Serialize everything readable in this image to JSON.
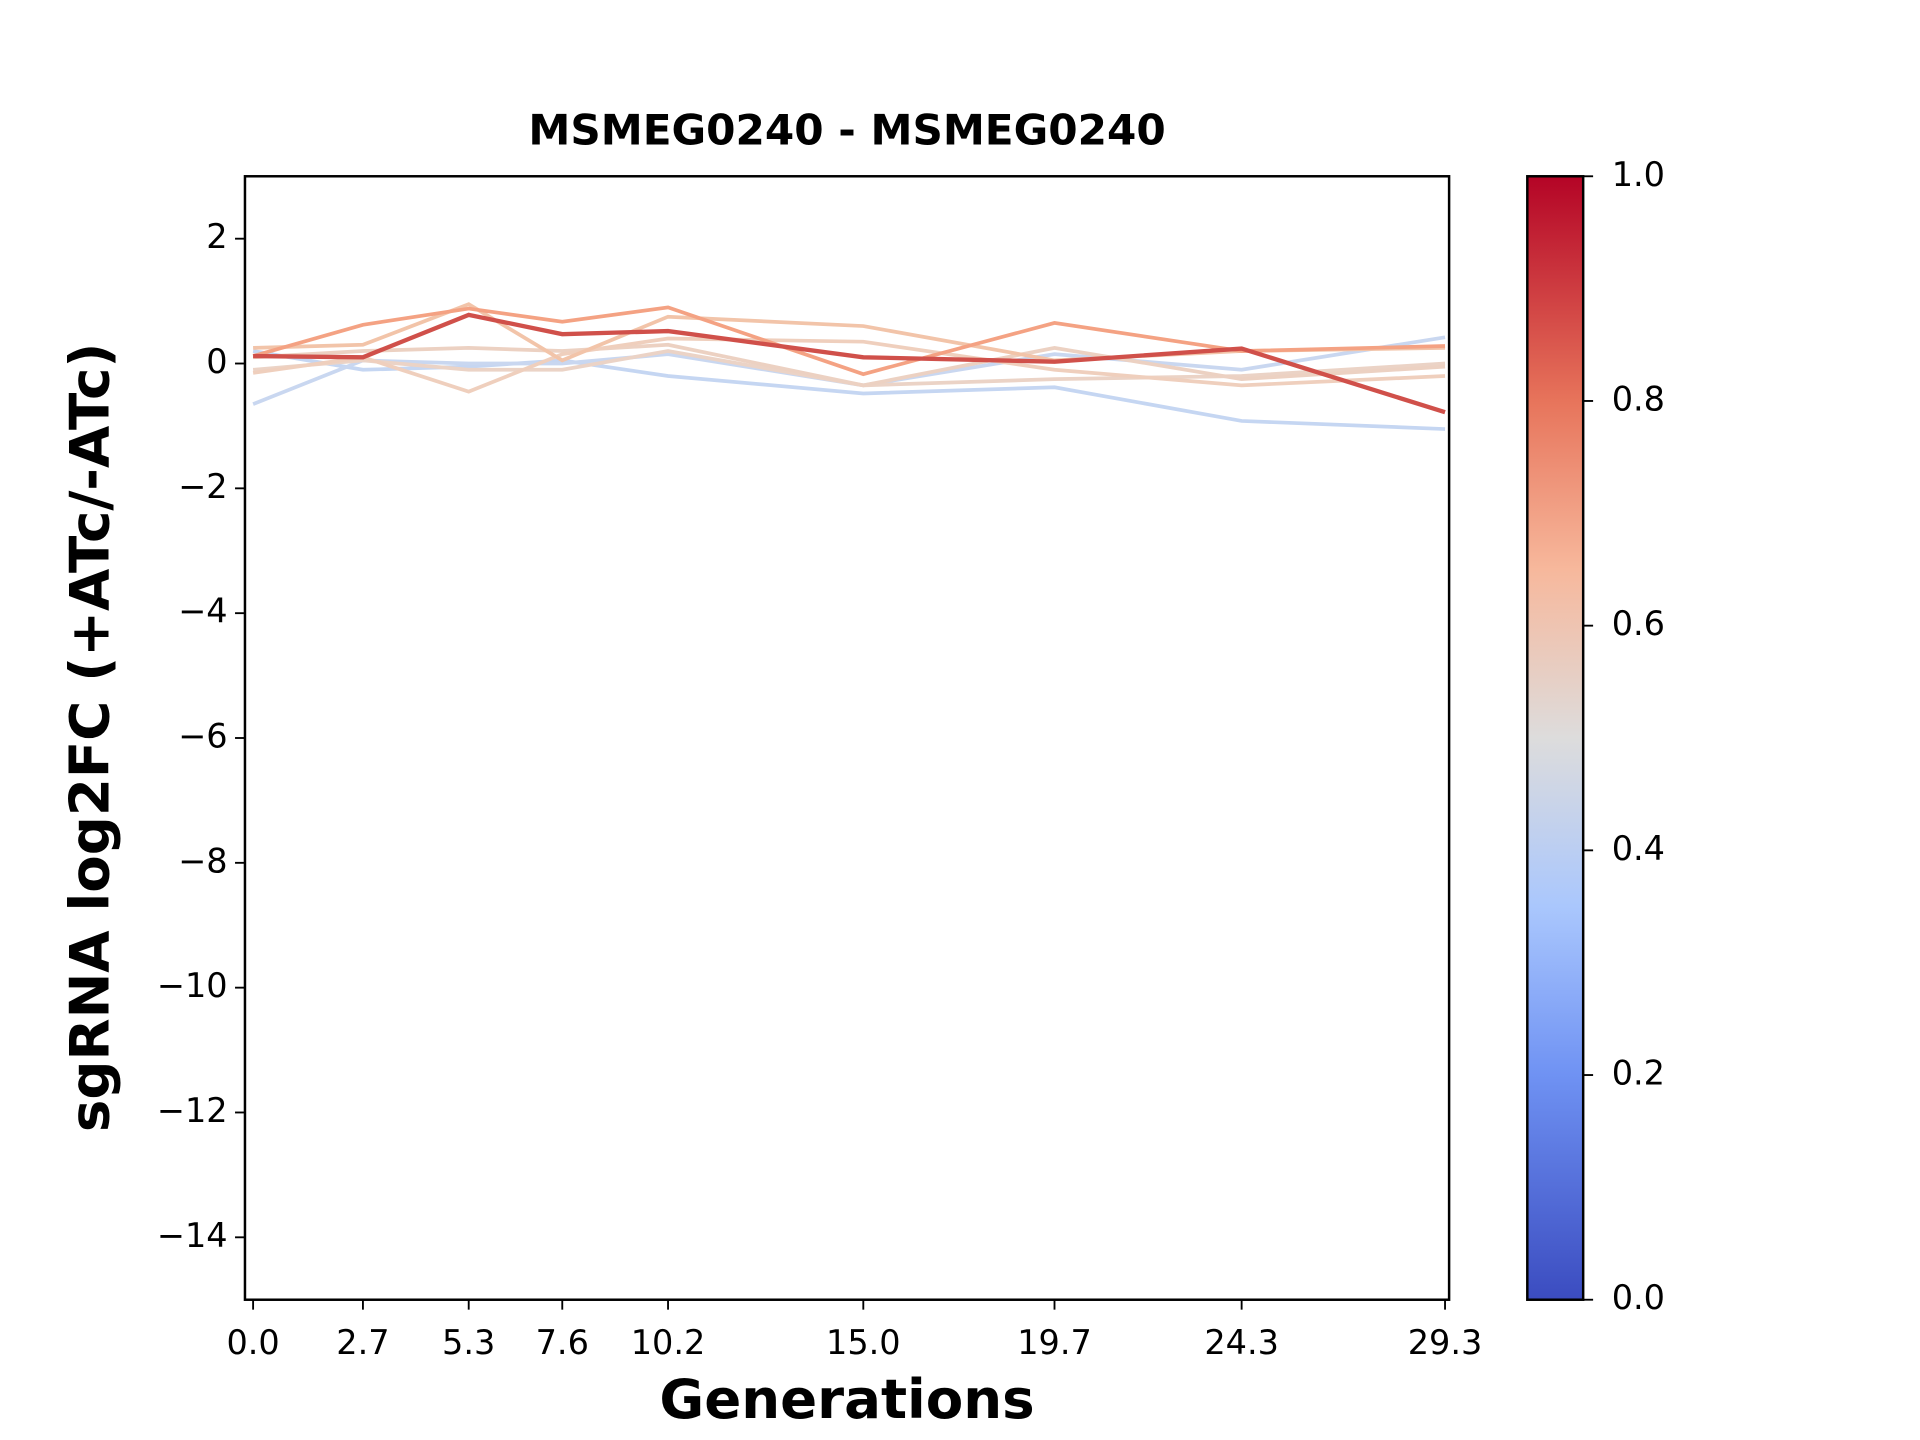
{
  "chart_data": {
    "type": "line",
    "title": "MSMEG0240 - MSMEG0240",
    "xlabel": "Generations",
    "ylabel": "sgRNA log2FC (+ATc/-ATc)",
    "x": [
      0.0,
      2.7,
      5.3,
      7.6,
      10.2,
      15.0,
      19.7,
      24.3,
      29.3
    ],
    "xlim": [
      -0.2,
      29.4
    ],
    "xticks": [
      {
        "value": 0,
        "label": "0.0"
      },
      2.7,
      5.3,
      7.6,
      10.2,
      {
        "value": 15,
        "label": "15.0"
      },
      19.7,
      24.3,
      29.3
    ],
    "ylim": [
      -15,
      3
    ],
    "yticks": [
      2,
      0,
      {
        "value": -2,
        "label": "−2"
      },
      {
        "value": -4,
        "label": "−4"
      },
      {
        "value": -6,
        "label": "−6"
      },
      {
        "value": -8,
        "label": "−8"
      },
      {
        "value": -10,
        "label": "−10"
      },
      {
        "value": -12,
        "label": "−12"
      },
      {
        "value": -14,
        "label": "−14"
      }
    ],
    "series": [
      {
        "color": "#c5d6f2",
        "values": [
          0.2,
          -0.1,
          -0.05,
          0.05,
          -0.2,
          -0.48,
          -0.38,
          -0.92,
          -1.05
        ]
      },
      {
        "color": "#c9d7f0",
        "values": [
          -0.65,
          0.05,
          0.0,
          0.0,
          0.15,
          -0.35,
          0.15,
          -0.1,
          0.42
        ]
      },
      {
        "color": "#ebd3c6",
        "values": [
          -0.1,
          0.05,
          -0.1,
          -0.1,
          0.2,
          -0.35,
          -0.25,
          -0.2,
          0.0
        ]
      },
      {
        "color": "#ecd1c2",
        "values": [
          0.1,
          0.2,
          0.25,
          0.2,
          0.3,
          -0.35,
          0.25,
          -0.25,
          -0.05
        ]
      },
      {
        "color": "#efcfbd",
        "values": [
          -0.15,
          0.1,
          -0.45,
          0.15,
          0.4,
          0.35,
          -0.1,
          -0.35,
          -0.2
        ]
      },
      {
        "color": "#f2c4a9",
        "values": [
          0.25,
          0.3,
          0.95,
          0.05,
          0.75,
          0.6,
          0.05,
          0.2,
          0.25
        ]
      },
      {
        "color": "#f4a283",
        "values": [
          0.12,
          0.62,
          0.88,
          0.67,
          0.9,
          -0.17,
          0.65,
          0.2,
          0.28
        ]
      },
      {
        "color": "#d0504a",
        "values": [
          0.12,
          0.1,
          0.78,
          0.47,
          0.52,
          0.1,
          0.03,
          0.24,
          -0.78
        ]
      }
    ],
    "colorbar": {
      "lim": [
        0,
        1
      ],
      "ticks": [
        {
          "value": 0,
          "label": "0.0"
        },
        0.2,
        0.4,
        0.6,
        0.8,
        {
          "value": 1,
          "label": "1.0"
        }
      ]
    }
  }
}
